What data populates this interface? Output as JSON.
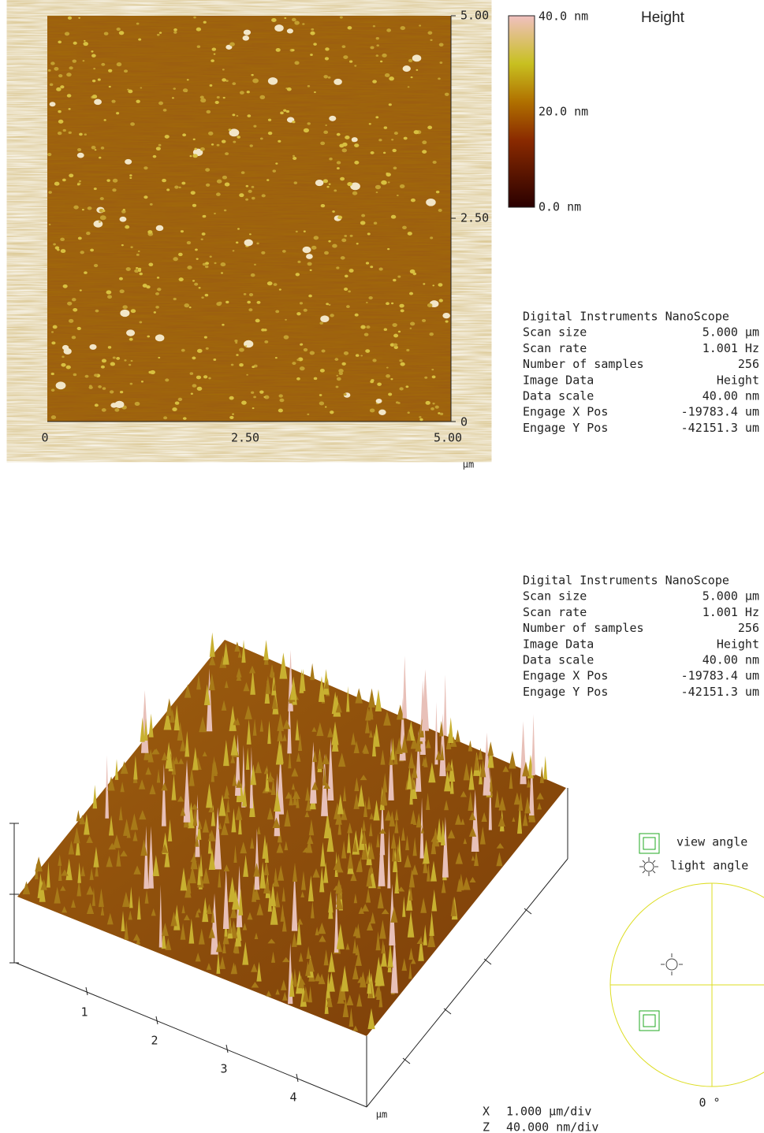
{
  "height_image": {
    "y_ticks": [
      "5.00",
      "2.50",
      "0"
    ],
    "x_ticks": [
      "0",
      "2.50",
      "5.00"
    ],
    "x_unit": "µm"
  },
  "color_scale": {
    "title": "Height",
    "labels": [
      "40.0 nm",
      "20.0 nm",
      "0.0 nm"
    ]
  },
  "info_panels": [
    {
      "header": "Digital Instruments NanoScope",
      "rows": [
        [
          "Scan size",
          "5.000 µm"
        ],
        [
          "Scan rate",
          "1.001 Hz"
        ],
        [
          "Number of samples",
          "256"
        ],
        [
          "Image Data",
          "Height"
        ],
        [
          "Data scale",
          "40.00 nm"
        ],
        [
          "Engage X Pos",
          "-19783.4 um"
        ],
        [
          "Engage Y Pos",
          "-42151.3 um"
        ]
      ]
    },
    {
      "header": "Digital Instruments NanoScope",
      "rows": [
        [
          "Scan size",
          "5.000 µm"
        ],
        [
          "Scan rate",
          "1.001 Hz"
        ],
        [
          "Number of samples",
          "256"
        ],
        [
          "Image Data",
          "Height"
        ],
        [
          "Data scale",
          "40.00 nm"
        ],
        [
          "Engage X Pos",
          "-19783.4 um"
        ],
        [
          "Engage Y Pos",
          "-42151.3 um"
        ]
      ]
    }
  ],
  "surface_plot": {
    "x_ticks": [
      "1",
      "2",
      "3",
      "4"
    ],
    "unit": "µm",
    "view_angle": "view angle",
    "light_angle": "light angle",
    "angle": "0 °",
    "scale": [
      [
        "X",
        "1.000 µm/div"
      ],
      [
        "Z",
        "40.000 nm/div"
      ]
    ]
  }
}
